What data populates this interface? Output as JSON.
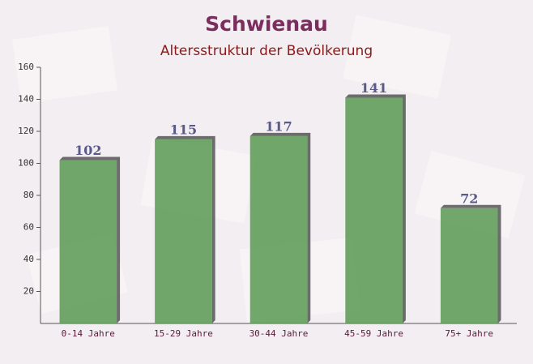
{
  "chart_data": {
    "type": "bar",
    "title": "Schwienau",
    "subtitle": "Altersstruktur der Bevölkerung",
    "categories": [
      "0-14 Jahre",
      "15-29 Jahre",
      "30-44 Jahre",
      "45-59 Jahre",
      "75+ Jahre"
    ],
    "values": [
      102,
      115,
      117,
      141,
      72
    ],
    "color": "#5e9c58",
    "ylim": [
      0,
      160
    ],
    "yticks": [
      20,
      40,
      60,
      80,
      100,
      120,
      140,
      160
    ],
    "grid": false
  }
}
